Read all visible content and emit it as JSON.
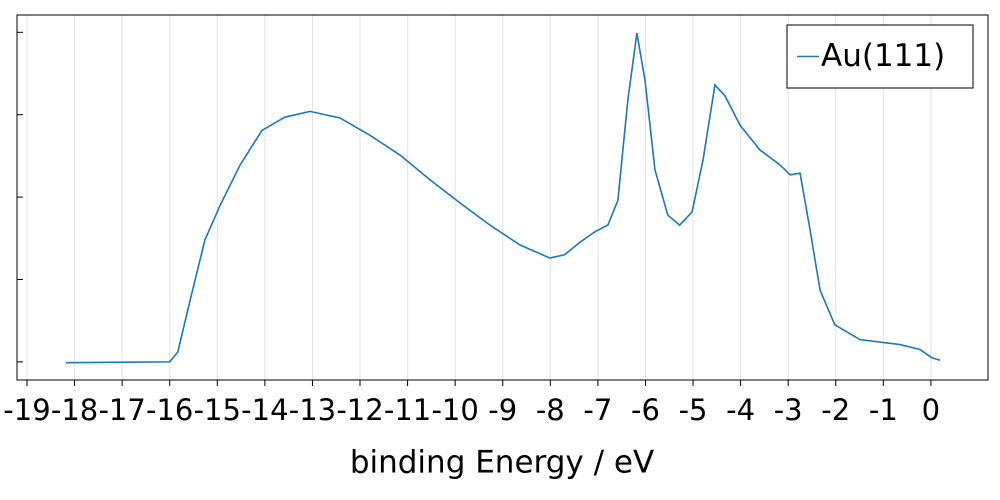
{
  "chart_data": {
    "type": "line",
    "x_label": "binding Energy / eV",
    "xlim": [
      -19.21,
      1.2
    ],
    "ylim": [
      -0.22,
      4.21
    ],
    "xticks": [
      -19,
      -18,
      -17,
      -16,
      -15,
      -14,
      -13,
      -12,
      -11,
      -10,
      -9,
      -8,
      -7,
      -6,
      -5,
      -4,
      -3,
      -2,
      -1,
      0
    ],
    "yticks": [
      0,
      1,
      2,
      3,
      4
    ],
    "xgrid": true,
    "legend": "top-right",
    "series": [
      {
        "name": "Au(111)",
        "color": "#1f77b4",
        "x": [
          -18.18,
          -16.0,
          -15.83,
          -15.57,
          -15.26,
          -14.94,
          -14.52,
          -14.06,
          -13.58,
          -13.05,
          -12.42,
          -11.79,
          -11.16,
          -10.53,
          -9.9,
          -9.27,
          -8.64,
          -8.01,
          -7.7,
          -7.38,
          -7.06,
          -6.79,
          -6.58,
          -6.37,
          -6.18,
          -6.01,
          -5.8,
          -5.53,
          -5.28,
          -5.02,
          -4.79,
          -4.54,
          -4.33,
          -4.01,
          -3.59,
          -3.17,
          -2.96,
          -2.75,
          -2.54,
          -2.33,
          -2.02,
          -1.49,
          -0.65,
          -0.23,
          0.02,
          0.19
        ],
        "values": [
          -0.01,
          0,
          0.12,
          0.75,
          1.48,
          1.9,
          2.39,
          2.81,
          2.97,
          3.04,
          2.96,
          2.75,
          2.51,
          2.21,
          1.93,
          1.66,
          1.42,
          1.26,
          1.3,
          1.45,
          1.58,
          1.66,
          1.96,
          3.18,
          3.99,
          3.42,
          2.33,
          1.78,
          1.66,
          1.82,
          2.45,
          3.36,
          3.23,
          2.87,
          2.57,
          2.39,
          2.27,
          2.29,
          1.6,
          0.87,
          0.45,
          0.27,
          0.21,
          0.15,
          0.05,
          0.02
        ]
      }
    ]
  }
}
